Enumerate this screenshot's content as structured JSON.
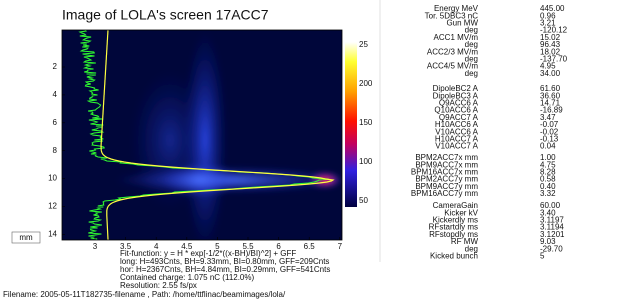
{
  "screen": {
    "title": "Image of LOLA's screen 17ACC7",
    "plot": {
      "xticks": [
        "3",
        "3.5",
        "4",
        "4.5",
        "5",
        "5.5",
        "6",
        "6.5",
        "7"
      ],
      "yticks": [
        "2",
        "4",
        "6",
        "8",
        "10",
        "12",
        "14"
      ],
      "colorbar_ticks": [
        "25",
        "200",
        "150",
        "100",
        "50"
      ],
      "unit_box": "mm"
    },
    "fit_info": [
      "Fit-function: y = H * exp[-1/2*((x-BH)/BI)^2] + GFF",
      "long: H=493Cnts, BH=9.33mm, BI=0.80mm, GFF=209Cnts",
      "hor:  H=2367Cnts, BH=4.84mm, BI=0.29mm, GFF=541Cnts",
      "Contained charge: 1.075 nC (112.0%)",
      "Resolution:   2.55 fs/px"
    ],
    "filename": "Filename: 2005-05-11T182735-filename , Path: /home/ttflinac/beamimages/lola/",
    "side_panel": [
      [
        {
          "label": "Energy   MeV",
          "value": "445.00"
        },
        {
          "label": "Tor. 5DBC3 nC",
          "value": "0.96"
        },
        {
          "label": "Gun      MW",
          "value": "3.21"
        },
        {
          "label": "deg",
          "value": "-120.12"
        },
        {
          "label": "ACC1    MV/m",
          "value": "15.02"
        },
        {
          "label": "deg",
          "value": "96.43"
        },
        {
          "label": "ACC2/3  MV/m",
          "value": "18.02"
        },
        {
          "label": "deg",
          "value": "-137.70"
        },
        {
          "label": "ACC4/5  MV/m",
          "value": "4.95"
        },
        {
          "label": "deg",
          "value": "34.00"
        }
      ],
      [
        {
          "label": "DipoleBC2  A",
          "value": "61.60"
        },
        {
          "label": "DipoleBC3  A",
          "value": "36.60"
        },
        {
          "label": "Q9ACC6   A",
          "value": "14.71"
        },
        {
          "label": "Q10ACC6   A",
          "value": "-16.89"
        },
        {
          "label": "Q9ACC7   A",
          "value": "3.47"
        },
        {
          "label": "H10ACC6   A",
          "value": "-0.07"
        },
        {
          "label": "V10ACC6   A",
          "value": "-0.02"
        },
        {
          "label": "H10ACC7   A",
          "value": "-0.13"
        },
        {
          "label": "V10ACC7   A",
          "value": "0.04"
        }
      ],
      [
        {
          "label": "BPM2ACC7x  mm",
          "value": "1.00"
        },
        {
          "label": "BPM9ACC7x  mm",
          "value": "4.75"
        },
        {
          "label": "BPM16ACC7x mm",
          "value": "8.28"
        },
        {
          "label": "BPM2ACC7y  mm",
          "value": "0.58"
        },
        {
          "label": "BPM9ACC7y  mm",
          "value": "0.40"
        },
        {
          "label": "BPM16ACC7y mm",
          "value": "3.32"
        }
      ],
      [
        {
          "label": "CameraGain",
          "value": "60.00"
        },
        {
          "label": "Kicker   kV",
          "value": "3.40"
        },
        {
          "label": "Kickerdly  ms",
          "value": "3.1197"
        },
        {
          "label": "RFstartdly  ms",
          "value": "3.1194"
        },
        {
          "label": "RFstopdly  ms",
          "value": "3.1201"
        },
        {
          "label": "RF      MW",
          "value": "9.03"
        },
        {
          "label": "deg",
          "value": "-29.70"
        },
        {
          "label": "Kicked bunch",
          "value": "5"
        }
      ]
    ]
  }
}
